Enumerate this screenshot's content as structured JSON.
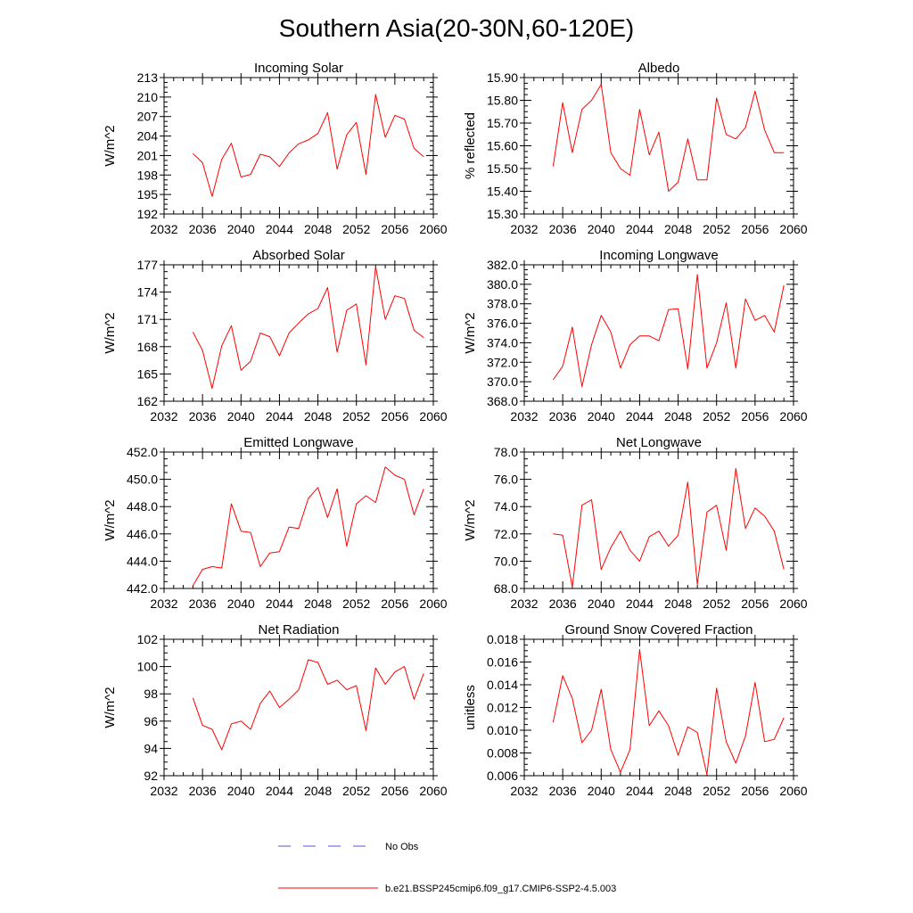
{
  "figure": {
    "title": "Southern Asia(20-30N,60-120E)",
    "line_color": "#ff0000",
    "obs_color": "#5555cc"
  },
  "legend": {
    "obs_label": "No Obs",
    "model_label": "b.e21.BSSP245cmip6.f09_g17.CMIP6-SSP2-4.5.003"
  },
  "chart_data": [
    {
      "type": "line",
      "title": "Incoming Solar",
      "ylabel": "W/m^2",
      "xlim": [
        2032,
        2060
      ],
      "xticks": [
        2032,
        2036,
        2040,
        2044,
        2048,
        2052,
        2056,
        2060
      ],
      "ylim": [
        192,
        213
      ],
      "yticks": [
        "192",
        "195",
        "198",
        "201",
        "204",
        "207",
        "210",
        "213"
      ],
      "x": [
        2035,
        2036,
        2037,
        2038,
        2039,
        2040,
        2041,
        2042,
        2043,
        2044,
        2045,
        2046,
        2047,
        2048,
        2049,
        2050,
        2051,
        2052,
        2053,
        2054,
        2055,
        2056,
        2057,
        2058,
        2059
      ],
      "values": [
        201.3,
        199.9,
        194.7,
        200.4,
        202.9,
        197.7,
        198.1,
        201.2,
        200.8,
        199.3,
        201.4,
        202.8,
        203.4,
        204.4,
        207.6,
        198.9,
        204.2,
        206.1,
        198.1,
        210.4,
        203.8,
        207.2,
        206.6,
        202.1,
        200.8
      ]
    },
    {
      "type": "line",
      "title": "Albedo",
      "ylabel": "% reflected",
      "xlim": [
        2032,
        2060
      ],
      "xticks": [
        2032,
        2036,
        2040,
        2044,
        2048,
        2052,
        2056,
        2060
      ],
      "ylim": [
        15.3,
        15.9
      ],
      "yticks": [
        "15.30",
        "15.40",
        "15.50",
        "15.60",
        "15.70",
        "15.80",
        "15.90"
      ],
      "x": [
        2035,
        2036,
        2037,
        2038,
        2039,
        2040,
        2041,
        2042,
        2043,
        2044,
        2045,
        2046,
        2047,
        2048,
        2049,
        2050,
        2051,
        2052,
        2053,
        2054,
        2055,
        2056,
        2057,
        2058,
        2059
      ],
      "values": [
        15.51,
        15.79,
        15.57,
        15.76,
        15.8,
        15.87,
        15.57,
        15.5,
        15.47,
        15.76,
        15.56,
        15.66,
        15.4,
        15.44,
        15.63,
        15.45,
        15.45,
        15.81,
        15.65,
        15.63,
        15.68,
        15.84,
        15.67,
        15.57,
        15.57
      ]
    },
    {
      "type": "line",
      "title": "Absorbed Solar",
      "ylabel": "W/m^2",
      "xlim": [
        2032,
        2060
      ],
      "xticks": [
        2032,
        2036,
        2040,
        2044,
        2048,
        2052,
        2056,
        2060
      ],
      "ylim": [
        162,
        177
      ],
      "yticks": [
        "162",
        "165",
        "168",
        "171",
        "174",
        "177"
      ],
      "x": [
        2035,
        2036,
        2037,
        2038,
        2039,
        2040,
        2041,
        2042,
        2043,
        2044,
        2045,
        2046,
        2047,
        2048,
        2049,
        2050,
        2051,
        2052,
        2053,
        2054,
        2055,
        2056,
        2057,
        2058,
        2059
      ],
      "values": [
        169.6,
        167.6,
        163.4,
        168.1,
        170.3,
        165.4,
        166.4,
        169.5,
        169.1,
        167.0,
        169.5,
        170.6,
        171.6,
        172.2,
        174.5,
        167.4,
        172.0,
        172.7,
        166.0,
        176.8,
        171.0,
        173.6,
        173.3,
        169.8,
        169.0
      ]
    },
    {
      "type": "line",
      "title": "Incoming Longwave",
      "ylabel": "W/m^2",
      "xlim": [
        2032,
        2060
      ],
      "xticks": [
        2032,
        2036,
        2040,
        2044,
        2048,
        2052,
        2056,
        2060
      ],
      "ylim": [
        368.0,
        382.0
      ],
      "yticks": [
        "368.0",
        "370.0",
        "372.0",
        "374.0",
        "376.0",
        "378.0",
        "380.0",
        "382.0"
      ],
      "x": [
        2035,
        2036,
        2037,
        2038,
        2039,
        2040,
        2041,
        2042,
        2043,
        2044,
        2045,
        2046,
        2047,
        2048,
        2049,
        2050,
        2051,
        2052,
        2053,
        2054,
        2055,
        2056,
        2057,
        2058,
        2059
      ],
      "values": [
        370.2,
        371.6,
        375.6,
        369.5,
        373.8,
        376.8,
        375.1,
        371.4,
        373.8,
        374.7,
        374.7,
        374.2,
        377.4,
        377.5,
        371.3,
        381.0,
        371.4,
        374.0,
        378.1,
        371.4,
        378.5,
        376.3,
        376.8,
        375.1,
        379.9
      ]
    },
    {
      "type": "line",
      "title": "Emitted Longwave",
      "ylabel": "W/m^2",
      "xlim": [
        2032,
        2060
      ],
      "xticks": [
        2032,
        2036,
        2040,
        2044,
        2048,
        2052,
        2056,
        2060
      ],
      "ylim": [
        442.0,
        452.0
      ],
      "yticks": [
        "442.0",
        "444.0",
        "446.0",
        "448.0",
        "450.0",
        "452.0"
      ],
      "x": [
        2035,
        2036,
        2037,
        2038,
        2039,
        2040,
        2041,
        2042,
        2043,
        2044,
        2045,
        2046,
        2047,
        2048,
        2049,
        2050,
        2051,
        2052,
        2053,
        2054,
        2055,
        2056,
        2057,
        2058,
        2059
      ],
      "values": [
        442.2,
        443.4,
        443.6,
        443.5,
        448.2,
        446.2,
        446.1,
        443.6,
        444.6,
        444.7,
        446.5,
        446.4,
        448.6,
        449.4,
        447.2,
        449.3,
        445.1,
        448.2,
        448.8,
        448.3,
        450.9,
        450.3,
        450.0,
        447.4,
        449.3
      ]
    },
    {
      "type": "line",
      "title": "Net Longwave",
      "ylabel": "W/m^2",
      "xlim": [
        2032,
        2060
      ],
      "xticks": [
        2032,
        2036,
        2040,
        2044,
        2048,
        2052,
        2056,
        2060
      ],
      "ylim": [
        68.0,
        78.0
      ],
      "yticks": [
        "68.0",
        "70.0",
        "72.0",
        "74.0",
        "76.0",
        "78.0"
      ],
      "x": [
        2035,
        2036,
        2037,
        2038,
        2039,
        2040,
        2041,
        2042,
        2043,
        2044,
        2045,
        2046,
        2047,
        2048,
        2049,
        2050,
        2051,
        2052,
        2053,
        2054,
        2055,
        2056,
        2057,
        2058,
        2059
      ],
      "values": [
        72.0,
        71.9,
        68.1,
        74.1,
        74.5,
        69.4,
        71.0,
        72.2,
        70.8,
        70.0,
        71.8,
        72.2,
        71.1,
        71.9,
        75.8,
        68.3,
        73.6,
        74.1,
        70.8,
        76.8,
        72.4,
        73.9,
        73.3,
        72.2,
        69.4
      ]
    },
    {
      "type": "line",
      "title": "Net Radiation",
      "ylabel": "W/m^2",
      "xlim": [
        2032,
        2060
      ],
      "xticks": [
        2032,
        2036,
        2040,
        2044,
        2048,
        2052,
        2056,
        2060
      ],
      "ylim": [
        92,
        102
      ],
      "yticks": [
        "92",
        "94",
        "96",
        "98",
        "100",
        "102"
      ],
      "x": [
        2035,
        2036,
        2037,
        2038,
        2039,
        2040,
        2041,
        2042,
        2043,
        2044,
        2045,
        2046,
        2047,
        2048,
        2049,
        2050,
        2051,
        2052,
        2053,
        2054,
        2055,
        2056,
        2057,
        2058,
        2059
      ],
      "values": [
        97.7,
        95.7,
        95.4,
        93.9,
        95.8,
        96.0,
        95.4,
        97.3,
        98.2,
        97.0,
        97.6,
        98.3,
        100.5,
        100.3,
        98.7,
        99.0,
        98.3,
        98.6,
        95.3,
        99.9,
        98.7,
        99.6,
        100.0,
        97.6,
        99.5
      ]
    },
    {
      "type": "line",
      "title": "Ground Snow Covered Fraction",
      "ylabel": "unitless",
      "xlim": [
        2032,
        2060
      ],
      "xticks": [
        2032,
        2036,
        2040,
        2044,
        2048,
        2052,
        2056,
        2060
      ],
      "ylim": [
        0.006,
        0.018
      ],
      "yticks": [
        "0.006",
        "0.008",
        "0.010",
        "0.012",
        "0.014",
        "0.016",
        "0.018"
      ],
      "x": [
        2035,
        2036,
        2037,
        2038,
        2039,
        2040,
        2041,
        2042,
        2043,
        2044,
        2045,
        2046,
        2047,
        2048,
        2049,
        2050,
        2051,
        2052,
        2053,
        2054,
        2055,
        2056,
        2057,
        2058,
        2059
      ],
      "values": [
        0.0107,
        0.0148,
        0.0128,
        0.0089,
        0.01,
        0.0136,
        0.0083,
        0.0063,
        0.0083,
        0.0171,
        0.0104,
        0.0117,
        0.0104,
        0.0078,
        0.0103,
        0.0098,
        0.0061,
        0.0137,
        0.009,
        0.0071,
        0.0095,
        0.0142,
        0.009,
        0.0092,
        0.0111
      ]
    }
  ]
}
